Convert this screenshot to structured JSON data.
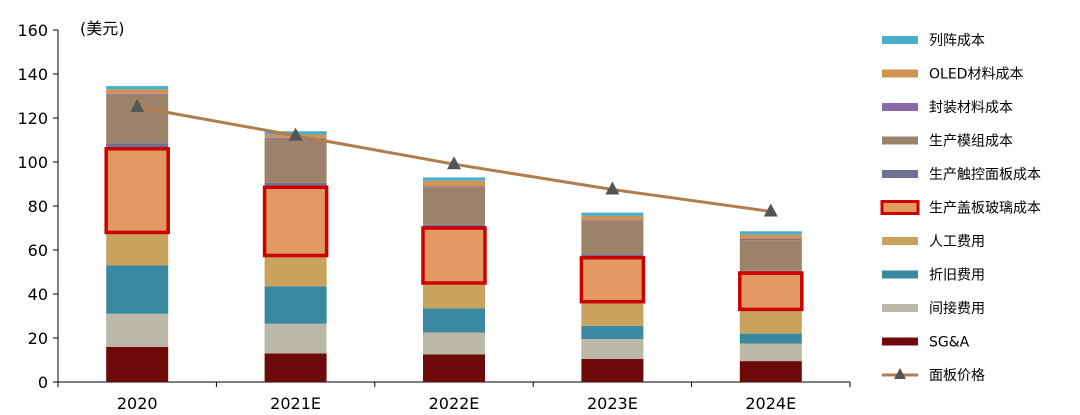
{
  "chart_data": {
    "type": "bar",
    "stacked": true,
    "unit_label": "(美元)",
    "categories": [
      "2020",
      "2021E",
      "2022E",
      "2023E",
      "2024E"
    ],
    "ylim": [
      0,
      160
    ],
    "yticks": [
      0,
      20,
      40,
      60,
      80,
      100,
      120,
      140,
      160
    ],
    "grid": false,
    "legend_position": "right",
    "series": [
      {
        "name": "SG&A",
        "color": "#6e0a0a",
        "values": [
          16,
          13,
          12.5,
          10.5,
          9.5
        ]
      },
      {
        "name": "间接费用",
        "color": "#bcb8a8",
        "values": [
          15,
          13.5,
          10,
          9,
          8
        ]
      },
      {
        "name": "折旧费用",
        "color": "#3a87a0",
        "values": [
          22,
          17,
          11,
          6,
          4.5
        ]
      },
      {
        "name": "人工费用",
        "color": "#c9a35e",
        "values": [
          15,
          14,
          11.5,
          11,
          11
        ]
      },
      {
        "name": "生产盖板玻璃成本",
        "color": "#e39a62",
        "border": "#cc0000",
        "values": [
          38,
          31,
          25,
          20,
          16.5
        ]
      },
      {
        "name": "生产触控面板成本",
        "color": "#6f7190",
        "values": [
          2.5,
          2,
          1.5,
          1.5,
          1
        ]
      },
      {
        "name": "生产模组成本",
        "color": "#9b8269",
        "values": [
          22,
          20,
          17,
          15,
          14
        ]
      },
      {
        "name": "封装材料成本",
        "color": "#8a6aa8",
        "values": [
          0.5,
          0.5,
          0.5,
          0.5,
          0.5
        ]
      },
      {
        "name": "OLED材料成本",
        "color": "#cf9452",
        "values": [
          2,
          1.5,
          2.5,
          2,
          2
        ]
      },
      {
        "name": "列阵成本",
        "color": "#49afcd",
        "values": [
          1.5,
          1.5,
          1.5,
          1.5,
          1.5
        ]
      }
    ],
    "line_series": {
      "name": "面板价格",
      "color": "#b07d4e",
      "marker_color": "#555555",
      "values": [
        125,
        112,
        99,
        87.5,
        77.5
      ]
    },
    "legend_order": [
      "列阵成本",
      "OLED材料成本",
      "封装材料成本",
      "生产模组成本",
      "生产触控面板成本",
      "生产盖板玻璃成本",
      "人工费用",
      "折旧费用",
      "间接费用",
      "SG&A",
      "面板价格"
    ]
  }
}
